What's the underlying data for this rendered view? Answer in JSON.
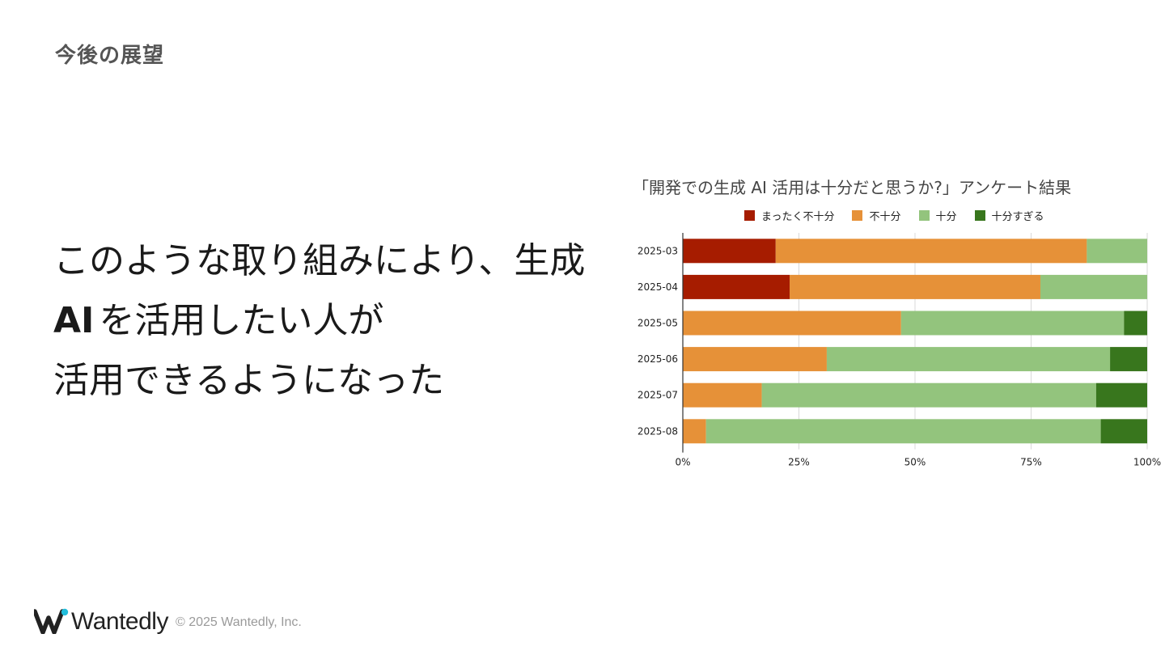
{
  "page": {
    "section_title": "今後の展望",
    "headline": {
      "line1": "このような取り組みにより、生成",
      "line2_strong": "AI",
      "line2_rest": "を活用したい人が",
      "line3": "活用できるようになった"
    }
  },
  "footer": {
    "brand": "Wantedly",
    "copyright": "© 2025 Wantedly, Inc.",
    "logo_icon": "wantedly-logo-icon",
    "accent_color": "#21bddb"
  },
  "chart_data": {
    "type": "bar",
    "orientation": "horizontal",
    "stacked": "100%",
    "title": "「開発での生成 AI 活用は十分だと思うか?」アンケート結果",
    "legend_position": "top",
    "grid": true,
    "categories": [
      "2025-03",
      "2025-04",
      "2025-05",
      "2025-06",
      "2025-07",
      "2025-08"
    ],
    "x_ticks": [
      "0%",
      "25%",
      "50%",
      "75%",
      "100%"
    ],
    "xlim": [
      0,
      100
    ],
    "series": [
      {
        "name": "まったく不十分",
        "color": "#a61c00",
        "values": [
          20,
          23,
          0,
          0,
          0,
          0
        ]
      },
      {
        "name": "不十分",
        "color": "#e69138",
        "values": [
          67,
          54,
          47,
          31,
          17,
          5
        ]
      },
      {
        "name": "十分",
        "color": "#93c47d",
        "values": [
          13,
          23,
          48,
          61,
          72,
          85
        ]
      },
      {
        "name": "十分すぎる",
        "color": "#38761d",
        "values": [
          0,
          0,
          5,
          8,
          11,
          10
        ]
      }
    ]
  }
}
